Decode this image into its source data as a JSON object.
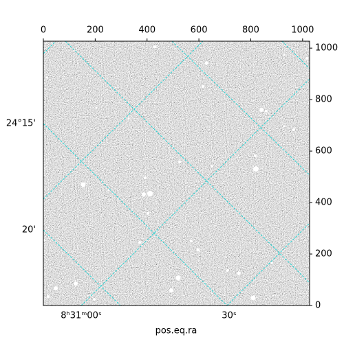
{
  "chart_data": {
    "type": "image",
    "xlabel": "pos.eq.ra",
    "xlim": [
      0,
      1027
    ],
    "xticks": [
      0,
      200,
      400,
      600,
      800,
      1000
    ],
    "ylim": [
      0,
      1027
    ],
    "yticks": [
      0,
      200,
      400,
      600,
      800,
      1000
    ],
    "ra_labels": [
      "8ʰ31ᵐ00ˢ",
      "30ˢ"
    ],
    "dec_labels": [
      "24°15'",
      "20'"
    ]
  }
}
